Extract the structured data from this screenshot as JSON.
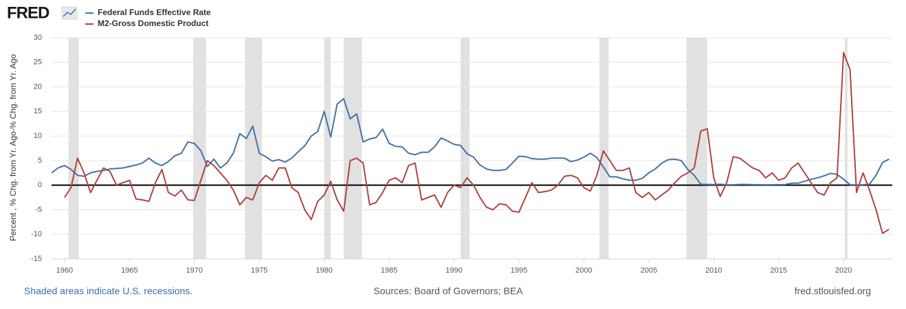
{
  "chart_data": {
    "type": "line",
    "logo": "FRED",
    "y_label": "Percent , % Chg. from Yr. Ago-% Chg. from Yr. Ago",
    "note": "Shaded areas indicate U.S. recessions.",
    "source": "Sources: Board of Governors; BEA",
    "site": "fred.stlouisfed.org",
    "xlim": [
      1959,
      2023.75
    ],
    "ylim": [
      -15,
      30
    ],
    "xticks": [
      1960,
      1965,
      1970,
      1975,
      1980,
      1985,
      1990,
      1995,
      2000,
      2005,
      2010,
      2015,
      2020
    ],
    "yticks": [
      -15,
      -10,
      -5,
      0,
      5,
      10,
      15,
      20,
      25,
      30
    ],
    "grid": true,
    "hline": 0,
    "recession_color": "#e1e1e1",
    "recessions": [
      [
        1960.3,
        1961.1
      ],
      [
        1969.9,
        1970.9
      ],
      [
        1973.9,
        1975.2
      ],
      [
        1980.0,
        1980.5
      ],
      [
        1981.5,
        1982.9
      ],
      [
        1990.5,
        1991.2
      ],
      [
        2001.2,
        2001.9
      ],
      [
        2007.9,
        2009.5
      ],
      [
        2020.1,
        2020.3
      ]
    ],
    "x": [
      1959,
      1959.5,
      1960,
      1960.5,
      1961,
      1961.5,
      1962,
      1962.5,
      1963,
      1963.5,
      1964,
      1964.5,
      1965,
      1965.5,
      1966,
      1966.5,
      1967,
      1967.5,
      1968,
      1968.5,
      1969,
      1969.5,
      1970,
      1970.5,
      1971,
      1971.5,
      1972,
      1972.5,
      1973,
      1973.5,
      1974,
      1974.5,
      1975,
      1975.5,
      1976,
      1976.5,
      1977,
      1977.5,
      1978,
      1978.5,
      1979,
      1979.5,
      1980,
      1980.5,
      1981,
      1981.5,
      1982,
      1982.5,
      1983,
      1983.5,
      1984,
      1984.5,
      1985,
      1985.5,
      1986,
      1986.5,
      1987,
      1987.5,
      1988,
      1988.5,
      1989,
      1989.5,
      1990,
      1990.5,
      1991,
      1991.5,
      1992,
      1992.5,
      1993,
      1993.5,
      1994,
      1994.5,
      1995,
      1995.5,
      1996,
      1996.5,
      1997,
      1997.5,
      1998,
      1998.5,
      1999,
      1999.5,
      2000,
      2000.5,
      2001,
      2001.5,
      2002,
      2002.5,
      2003,
      2003.5,
      2004,
      2004.5,
      2005,
      2005.5,
      2006,
      2006.5,
      2007,
      2007.5,
      2008,
      2008.5,
      2009,
      2009.5,
      2010,
      2010.5,
      2011,
      2011.5,
      2012,
      2012.5,
      2013,
      2013.5,
      2014,
      2014.5,
      2015,
      2015.5,
      2016,
      2016.5,
      2017,
      2017.5,
      2018,
      2018.5,
      2019,
      2019.5,
      2020,
      2020.5,
      2021,
      2021.5,
      2022,
      2022.5,
      2023,
      2023.5
    ],
    "series": [
      {
        "name": "Federal Funds Effective Rate",
        "color": "#4572a7",
        "values": [
          2.5,
          3.5,
          4.0,
          3.2,
          2.0,
          1.8,
          2.5,
          2.8,
          3.0,
          3.3,
          3.4,
          3.5,
          3.8,
          4.1,
          4.5,
          5.5,
          4.5,
          4.0,
          4.8,
          6.0,
          6.5,
          8.8,
          8.5,
          7.0,
          3.8,
          5.3,
          3.5,
          4.5,
          6.5,
          10.5,
          9.5,
          12.0,
          6.5,
          5.8,
          4.9,
          5.2,
          4.7,
          5.5,
          6.8,
          8.0,
          10.0,
          10.9,
          15.0,
          9.8,
          16.5,
          17.6,
          13.5,
          14.5,
          8.8,
          9.4,
          9.7,
          11.4,
          8.5,
          7.9,
          7.8,
          6.5,
          6.2,
          6.7,
          6.7,
          7.8,
          9.6,
          9.0,
          8.3,
          8.1,
          6.4,
          5.7,
          4.1,
          3.3,
          3.0,
          3.0,
          3.2,
          4.5,
          5.9,
          5.8,
          5.4,
          5.3,
          5.3,
          5.5,
          5.5,
          5.5,
          4.8,
          5.1,
          5.7,
          6.5,
          5.6,
          3.7,
          1.7,
          1.7,
          1.3,
          1.0,
          1.0,
          1.4,
          2.5,
          3.3,
          4.5,
          5.2,
          5.3,
          5.0,
          3.2,
          2.0,
          0.2,
          0.15,
          0.13,
          0.18,
          0.1,
          0.08,
          0.14,
          0.15,
          0.11,
          0.09,
          0.07,
          0.09,
          0.11,
          0.13,
          0.4,
          0.4,
          0.8,
          1.2,
          1.5,
          1.9,
          2.4,
          2.2,
          1.2,
          0.1,
          0.08,
          0.1,
          0.2,
          2.0,
          4.6,
          5.3
        ]
      },
      {
        "name": "M2-Gross Domestic Product",
        "color": "#aa4643",
        "values": [
          null,
          null,
          -2.5,
          -0.5,
          5.5,
          2.5,
          -1.5,
          1.0,
          3.5,
          2.8,
          0.0,
          0.5,
          1.0,
          -2.8,
          -3.0,
          -3.3,
          0.5,
          3.2,
          -1.5,
          -2.2,
          -1.0,
          -3.0,
          -3.1,
          1.0,
          5.0,
          4.0,
          2.5,
          1.0,
          -1.0,
          -4.0,
          -2.5,
          -3.0,
          0.5,
          2.0,
          1.0,
          3.5,
          3.5,
          -0.5,
          -1.5,
          -5.0,
          -7.0,
          -3.3,
          -2.0,
          0.8,
          -3.0,
          -5.3,
          5.0,
          5.5,
          4.5,
          -4.0,
          -3.5,
          -1.5,
          1.0,
          1.5,
          0.5,
          4.0,
          4.5,
          -3.0,
          -2.5,
          -2.0,
          -4.5,
          -1.5,
          0.0,
          -0.5,
          1.5,
          0.0,
          -2.5,
          -4.5,
          -5.0,
          -3.8,
          -4.0,
          -5.3,
          -5.5,
          -2.5,
          0.5,
          -1.5,
          -1.3,
          -1.0,
          0.0,
          1.8,
          2.0,
          1.5,
          -0.5,
          -1.2,
          2.0,
          7.0,
          5.0,
          3.0,
          3.0,
          3.5,
          -1.5,
          -2.5,
          -1.5,
          -3.0,
          -2.0,
          -1.0,
          0.5,
          1.8,
          2.5,
          3.5,
          11.0,
          11.5,
          1.5,
          -2.3,
          0.5,
          5.8,
          5.5,
          4.5,
          3.5,
          3.0,
          1.5,
          2.5,
          1.0,
          1.5,
          3.5,
          4.5,
          2.5,
          0.5,
          -1.5,
          -2.0,
          0.5,
          1.5,
          27.0,
          23.5,
          -1.5,
          2.5,
          -1.0,
          -5.0,
          -9.8,
          -9.0
        ]
      }
    ]
  }
}
